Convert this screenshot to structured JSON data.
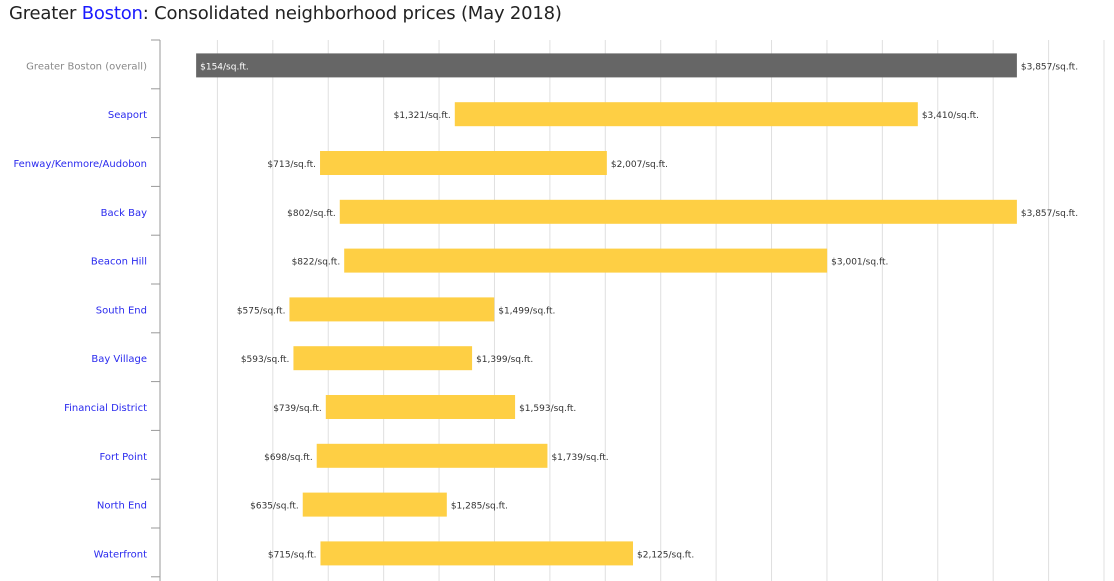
{
  "title": {
    "prefix": "Greater ",
    "highlight": "Boston",
    "suffix": ": Consolidated neighborhood prices (May 2018)"
  },
  "colors": {
    "overall_bar": "#666666",
    "neighborhood_bar": "#fecf44",
    "neighborhood_label": "#2a2aee",
    "overall_label": "#888888",
    "value_label": "#333333",
    "grid": "#e0e0e0",
    "axis": "#999999"
  },
  "chart_data": {
    "type": "bar",
    "subtype": "range-horizontal",
    "title": "Greater Boston: Consolidated neighborhood prices (May 2018)",
    "unit_suffix": "/sq.ft.",
    "xlim": [
      0,
      4250
    ],
    "grid_step": 250,
    "grid": true,
    "categories": [
      "Greater Boston (overall)",
      "Seaport",
      "Fenway/Kenmore/Audobon",
      "Back Bay",
      "Beacon Hill",
      "South End",
      "Bay Village",
      "Financial District",
      "Fort Point",
      "North End",
      "Waterfront"
    ],
    "series": [
      {
        "name": "low",
        "values": [
          154,
          1321,
          713,
          802,
          822,
          575,
          593,
          739,
          698,
          635,
          715
        ]
      },
      {
        "name": "high",
        "values": [
          3857,
          3410,
          2007,
          3857,
          3001,
          1499,
          1399,
          1593,
          1739,
          1285,
          2125
        ]
      }
    ],
    "low_labels": [
      "$154/sq.ft.",
      "$1,321/sq.ft.",
      "$713/sq.ft.",
      "$802/sq.ft.",
      "$822/sq.ft.",
      "$575/sq.ft.",
      "$593/sq.ft.",
      "$739/sq.ft.",
      "$698/sq.ft.",
      "$635/sq.ft.",
      "$715/sq.ft."
    ],
    "high_labels": [
      "$3,857/sq.ft.",
      "$3,410/sq.ft.",
      "$2,007/sq.ft.",
      "$3,857/sq.ft.",
      "$3,001/sq.ft.",
      "$1,499/sq.ft.",
      "$1,399/sq.ft.",
      "$1,593/sq.ft.",
      "$1,739/sq.ft.",
      "$1,285/sq.ft.",
      "$2,125/sq.ft."
    ]
  }
}
